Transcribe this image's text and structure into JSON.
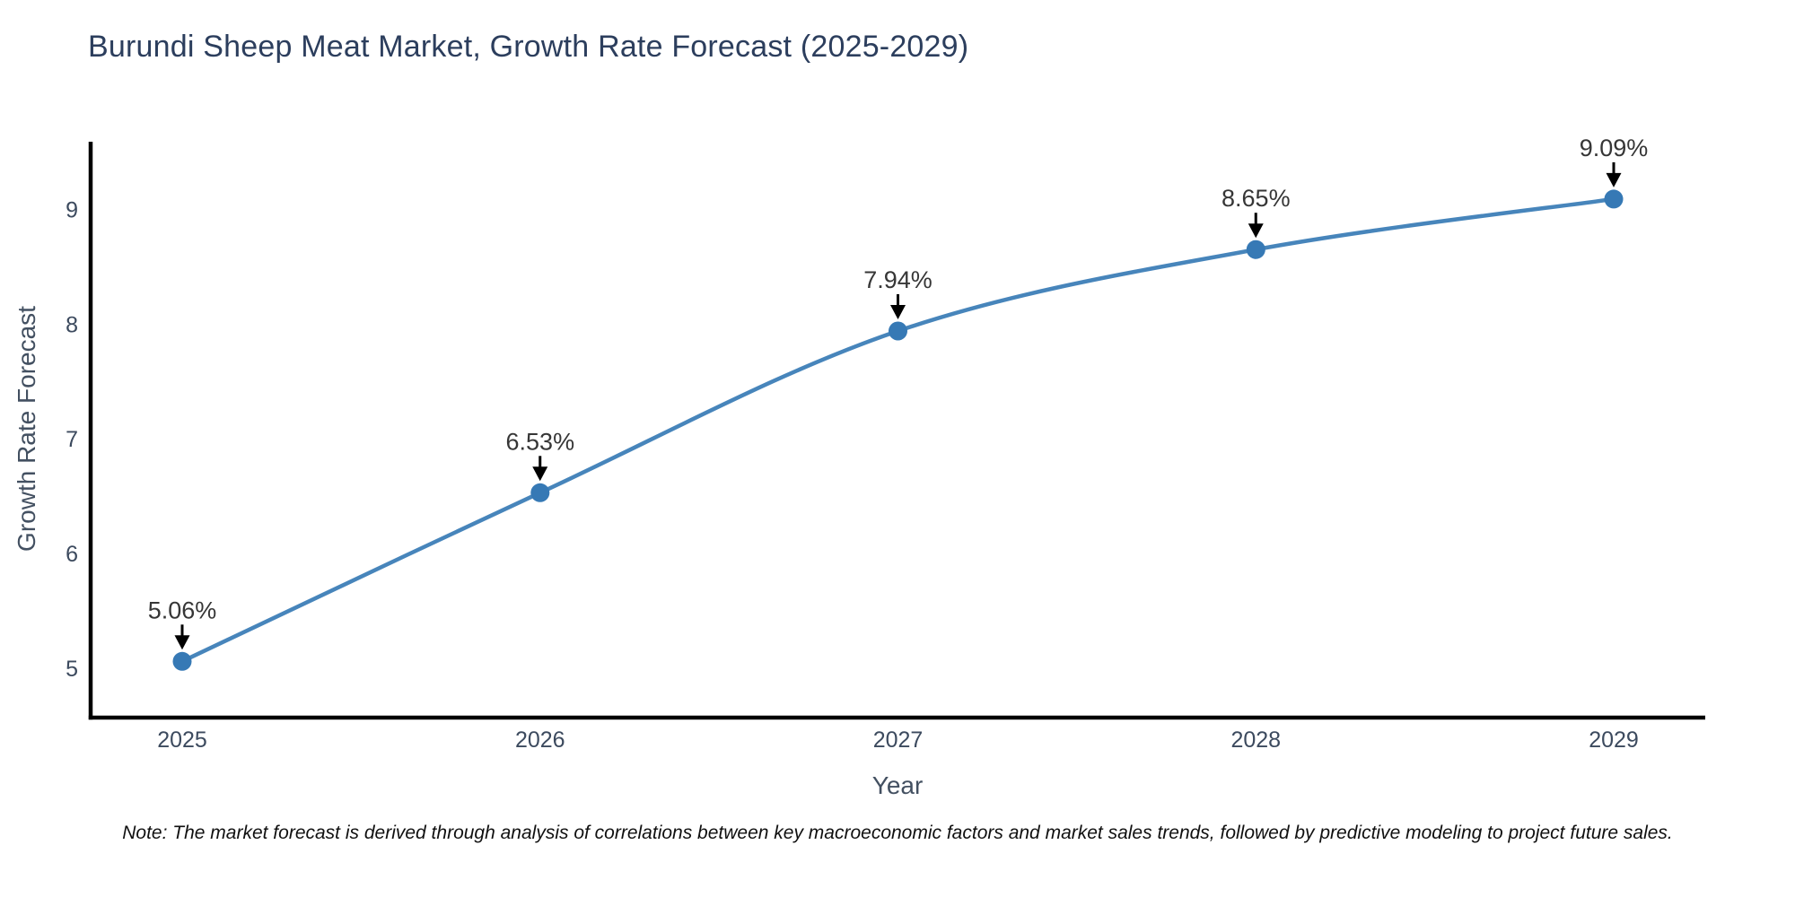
{
  "title": "Burundi Sheep Meat Market, Growth Rate Forecast (2025-2029)",
  "note": "Note: The market forecast is derived through analysis of correlations between key macroeconomic factors and market sales trends, followed by predictive modeling to project future sales.",
  "chart_data": {
    "type": "line",
    "title": "Burundi Sheep Meat Market, Growth Rate Forecast (2025-2029)",
    "xlabel": "Year",
    "ylabel": "Growth Rate Forecast",
    "x": [
      2025,
      2026,
      2027,
      2028,
      2029
    ],
    "series": [
      {
        "name": "Growth Rate Forecast",
        "values": [
          5.06,
          6.53,
          7.94,
          8.65,
          9.09
        ],
        "point_labels": [
          "5.06%",
          "6.53%",
          "7.94%",
          "8.65%",
          "9.09%"
        ]
      }
    ],
    "yticks": [
      5,
      6,
      7,
      8,
      9
    ],
    "ylim": [
      4.57,
      9.59
    ],
    "grid": false,
    "legend": "none",
    "line_shape": "spline",
    "annotation_style": "label with downward black arrow to each point",
    "colors": {
      "line": "#4785bb",
      "marker": "#3679b5",
      "axis": "#000000",
      "annotation": "#363636",
      "tick": "#3c4a5e",
      "title": "#2c3e5d",
      "background": "#ffffff"
    }
  }
}
